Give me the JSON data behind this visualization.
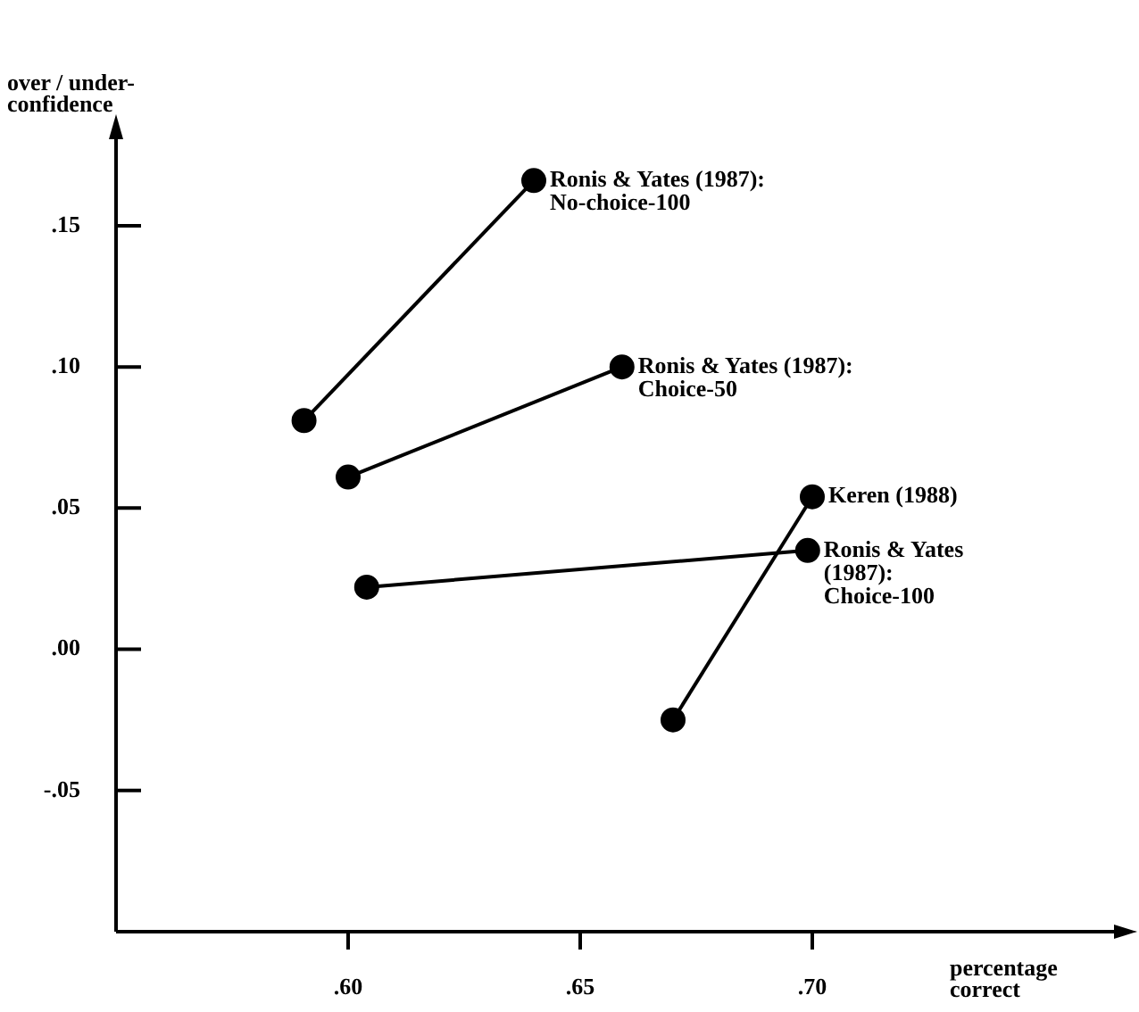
{
  "chart_data": {
    "type": "line",
    "xlabel": "percentage\ncorrect",
    "ylabel": "over / under-\nconfidence",
    "xlim": [
      0.55,
      0.765
    ],
    "xticks": [
      {
        "value": 0.6,
        "label": ".60"
      },
      {
        "value": 0.65,
        "label": ".65"
      },
      {
        "value": 0.7,
        "label": ".70"
      }
    ],
    "ylim": [
      -0.1,
      0.18
    ],
    "yticks": [
      {
        "value": -0.05,
        "label": "-.05"
      },
      {
        "value": 0,
        "label": ".00"
      },
      {
        "value": 0.05,
        "label": ".05"
      },
      {
        "value": 0.1,
        "label": ".10"
      },
      {
        "value": 0.15,
        "label": ".15"
      }
    ],
    "grid": false,
    "legend": false,
    "marker": "circle",
    "line_style": "solid",
    "series": [
      {
        "name": "Ronis & Yates (1987):\nNo-choice-100",
        "color": "#000000",
        "x": [
          0.5905,
          0.64
        ],
        "values": [
          0.081,
          0.166
        ]
      },
      {
        "name": "Ronis & Yates (1987):\nChoice-50",
        "color": "#000000",
        "x": [
          0.6,
          0.659
        ],
        "values": [
          0.061,
          0.1
        ]
      },
      {
        "name": "Ronis & Yates\n(1987):\nChoice-100",
        "color": "#000000",
        "x": [
          0.604,
          0.699
        ],
        "values": [
          0.022,
          0.035
        ]
      },
      {
        "name": "Keren (1988)",
        "color": "#000000",
        "x": [
          0.67,
          0.7
        ],
        "values": [
          -0.025,
          0.054
        ]
      }
    ]
  }
}
